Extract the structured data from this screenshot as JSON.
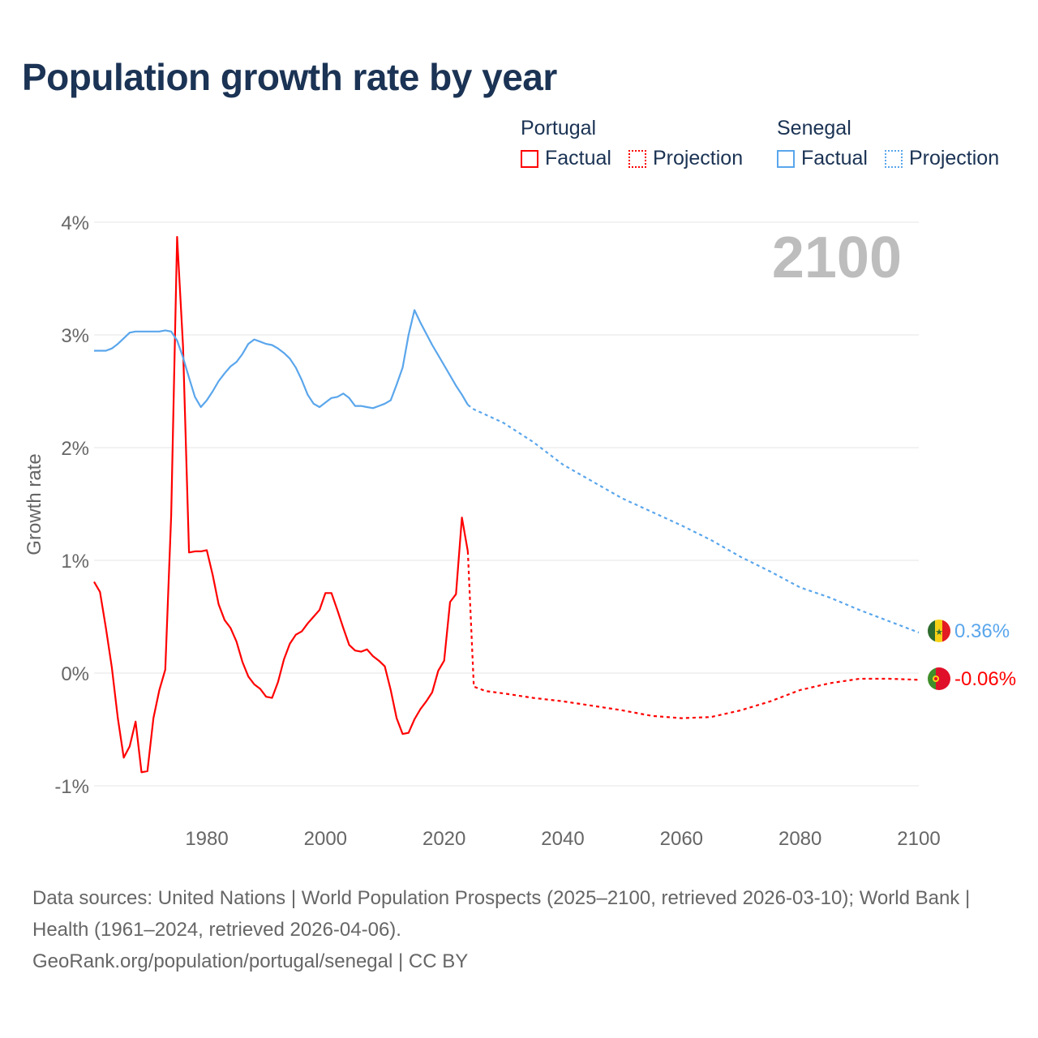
{
  "title": "Population growth rate by year",
  "legend": {
    "groups": [
      {
        "name": "Portugal",
        "color": "#ff0000",
        "items": [
          "Factual",
          "Projection"
        ]
      },
      {
        "name": "Senegal",
        "color": "#5aa6ec",
        "items": [
          "Factual",
          "Projection"
        ]
      }
    ]
  },
  "year_watermark": "2100",
  "end_labels": {
    "senegal": "0.36%",
    "portugal": "-0.06%"
  },
  "footer": {
    "sources": "Data sources: United Nations | World Population Prospects (2025–2100, retrieved 2026-03-10); World Bank | Health (1961–2024, retrieved 2026-04-06).",
    "credit": "GeoRank.org/population/portugal/senegal | CC BY"
  },
  "chart_data": {
    "type": "line",
    "title": "Population growth rate by year",
    "xlabel": "",
    "ylabel": "Growth rate",
    "xlim": [
      1961,
      2100
    ],
    "ylim": [
      -1,
      4
    ],
    "xticks": [
      1980,
      2000,
      2020,
      2040,
      2060,
      2080,
      2100
    ],
    "xtick_labels": [
      "1980",
      "2000",
      "2020",
      "2040",
      "2060",
      "2080",
      "2100"
    ],
    "yticks": [
      -1,
      0,
      1,
      2,
      3,
      4
    ],
    "ytick_labels": [
      "-1%",
      "0%",
      "1%",
      "2%",
      "3%",
      "4%"
    ],
    "grid": true,
    "legend_position": "top-right",
    "series": [
      {
        "name": "Portugal Factual",
        "color": "#ff0000",
        "dashed": false,
        "x": [
          1961,
          1962,
          1963,
          1964,
          1965,
          1966,
          1967,
          1968,
          1969,
          1970,
          1971,
          1972,
          1973,
          1974,
          1975,
          1976,
          1977,
          1978,
          1979,
          1980,
          1981,
          1982,
          1983,
          1984,
          1985,
          1986,
          1987,
          1988,
          1989,
          1990,
          1991,
          1992,
          1993,
          1994,
          1995,
          1996,
          1997,
          1998,
          1999,
          2000,
          2001,
          2002,
          2003,
          2004,
          2005,
          2006,
          2007,
          2008,
          2009,
          2010,
          2011,
          2012,
          2013,
          2014,
          2015,
          2016,
          2017,
          2018,
          2019,
          2020,
          2021,
          2022,
          2023,
          2024
        ],
        "y": [
          0.81,
          0.72,
          0.4,
          0.05,
          -0.4,
          -0.75,
          -0.65,
          -0.43,
          -0.88,
          -0.87,
          -0.4,
          -0.15,
          0.03,
          1.4,
          3.87,
          2.9,
          1.07,
          1.08,
          1.08,
          1.09,
          0.87,
          0.61,
          0.47,
          0.4,
          0.28,
          0.1,
          -0.03,
          -0.1,
          -0.14,
          -0.21,
          -0.22,
          -0.08,
          0.12,
          0.26,
          0.34,
          0.37,
          0.44,
          0.5,
          0.56,
          0.71,
          0.71,
          0.56,
          0.4,
          0.25,
          0.2,
          0.19,
          0.21,
          0.15,
          0.11,
          0.06,
          -0.15,
          -0.4,
          -0.54,
          -0.53,
          -0.41,
          -0.32,
          -0.25,
          -0.17,
          0.02,
          0.11,
          0.63,
          0.7,
          1.38,
          1.08
        ]
      },
      {
        "name": "Portugal Projection",
        "color": "#ff0000",
        "dashed": true,
        "x": [
          2024,
          2025,
          2027,
          2030,
          2035,
          2040,
          2045,
          2050,
          2055,
          2060,
          2065,
          2070,
          2075,
          2080,
          2085,
          2090,
          2095,
          2100
        ],
        "y": [
          1.08,
          -0.12,
          -0.16,
          -0.18,
          -0.22,
          -0.25,
          -0.29,
          -0.33,
          -0.38,
          -0.4,
          -0.39,
          -0.33,
          -0.25,
          -0.15,
          -0.09,
          -0.05,
          -0.05,
          -0.06
        ]
      },
      {
        "name": "Senegal Factual",
        "color": "#5aa6ec",
        "dashed": false,
        "x": [
          1961,
          1962,
          1963,
          1964,
          1965,
          1966,
          1967,
          1968,
          1969,
          1970,
          1971,
          1972,
          1973,
          1974,
          1975,
          1976,
          1977,
          1978,
          1979,
          1980,
          1981,
          1982,
          1983,
          1984,
          1985,
          1986,
          1987,
          1988,
          1989,
          1990,
          1991,
          1992,
          1993,
          1994,
          1995,
          1996,
          1997,
          1998,
          1999,
          2000,
          2001,
          2002,
          2003,
          2004,
          2005,
          2006,
          2007,
          2008,
          2009,
          2010,
          2011,
          2012,
          2013,
          2014,
          2015,
          2016,
          2017,
          2018,
          2019,
          2020,
          2021,
          2022,
          2023,
          2024
        ],
        "y": [
          2.86,
          2.86,
          2.86,
          2.88,
          2.92,
          2.97,
          3.02,
          3.03,
          3.03,
          3.03,
          3.03,
          3.03,
          3.04,
          3.03,
          2.95,
          2.8,
          2.62,
          2.45,
          2.36,
          2.42,
          2.5,
          2.59,
          2.66,
          2.72,
          2.76,
          2.83,
          2.92,
          2.96,
          2.94,
          2.92,
          2.91,
          2.88,
          2.84,
          2.79,
          2.71,
          2.6,
          2.47,
          2.39,
          2.36,
          2.4,
          2.44,
          2.45,
          2.48,
          2.44,
          2.37,
          2.37,
          2.36,
          2.35,
          2.37,
          2.39,
          2.42,
          2.56,
          2.71,
          3.0,
          3.22,
          3.11,
          3.01,
          2.91,
          2.82,
          2.73,
          2.64,
          2.55,
          2.47,
          2.38
        ]
      },
      {
        "name": "Senegal Projection",
        "color": "#5aa6ec",
        "dashed": true,
        "x": [
          2024,
          2025,
          2030,
          2035,
          2040,
          2045,
          2050,
          2055,
          2060,
          2065,
          2070,
          2075,
          2080,
          2085,
          2090,
          2095,
          2100
        ],
        "y": [
          2.38,
          2.34,
          2.22,
          2.05,
          1.85,
          1.7,
          1.55,
          1.43,
          1.31,
          1.18,
          1.03,
          0.9,
          0.76,
          0.67,
          0.56,
          0.46,
          0.36
        ]
      }
    ]
  }
}
